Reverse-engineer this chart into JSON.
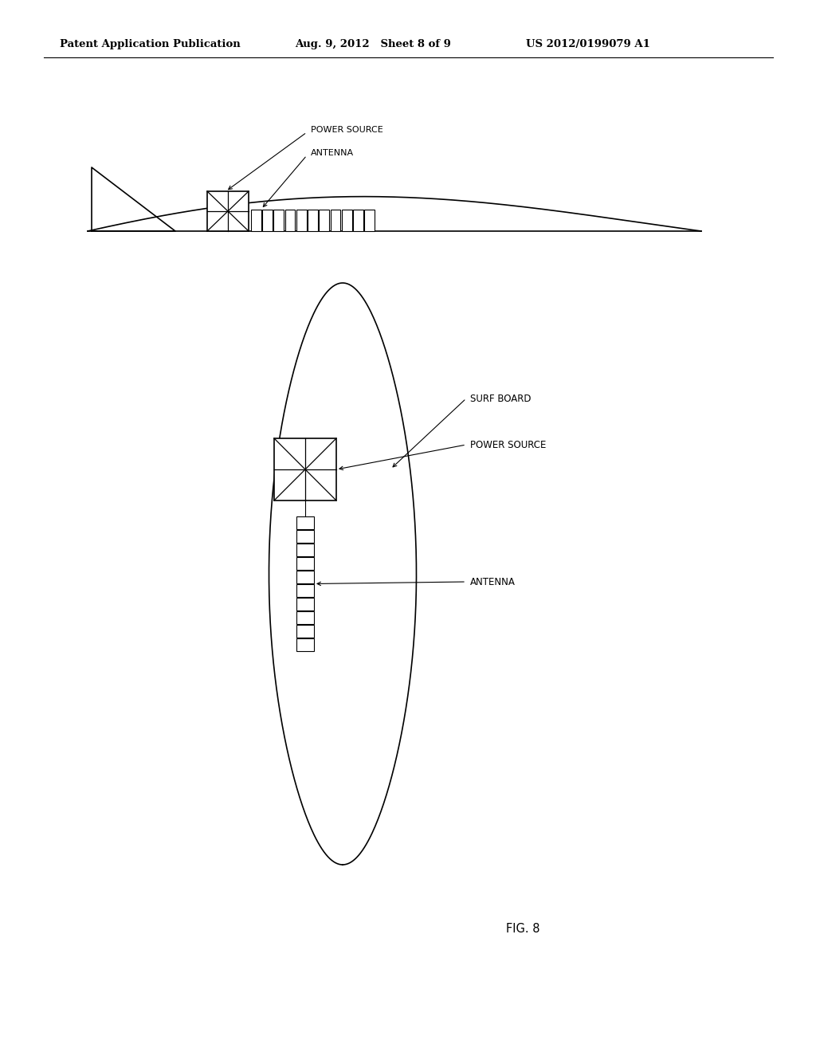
{
  "bg_color": "#ffffff",
  "header_left": "Patent Application Publication",
  "header_mid": "Aug. 9, 2012   Sheet 8 of 9",
  "header_right": "US 2012/0199079 A1",
  "fig_label": "FIG. 8",
  "labels": {
    "top_power_source": "POWER SOURCE",
    "top_antenna": "ANTENNA",
    "bottom_surfboard": "SURF BOARD",
    "bottom_power_source": "POWER SOURCE",
    "bottom_antenna": "ANTENNA"
  }
}
